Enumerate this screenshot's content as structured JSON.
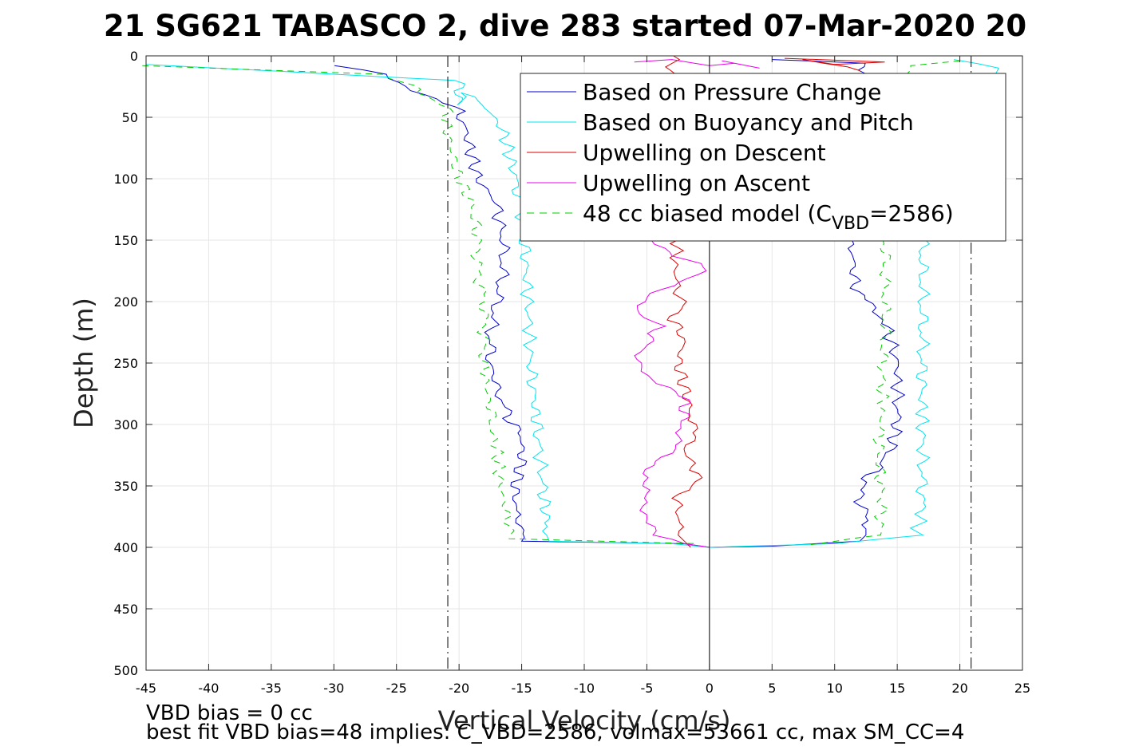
{
  "chart_data": {
    "type": "line",
    "title": "21 SG621 TABASCO 2, dive 283 started 07-Mar-2020 20",
    "xlabel": "Vertical Velocity (cm/s)",
    "ylabel": "Depth (m)",
    "xlim": [
      -45,
      25
    ],
    "ylim": [
      0,
      500
    ],
    "y_reversed": true,
    "grid": true,
    "x_ticks": [
      -45,
      -40,
      -35,
      -30,
      -25,
      -20,
      -15,
      -10,
      -5,
      0,
      5,
      10,
      15,
      20,
      25
    ],
    "y_ticks": [
      0,
      50,
      100,
      150,
      200,
      250,
      300,
      350,
      400,
      450,
      500
    ],
    "x_tick_labels": [
      "-45",
      "-40",
      "-35",
      "-30",
      "-25",
      "-20",
      "-15",
      "-10",
      "-5",
      "0",
      "5",
      "10",
      "15",
      "20",
      "25"
    ],
    "y_tick_labels": [
      "0",
      "50",
      "100",
      "150",
      "200",
      "250",
      "300",
      "350",
      "400",
      "450",
      "500"
    ],
    "vertical_reference_lines": [
      {
        "x": -20.9,
        "style": "dash-dot",
        "color": "#000000"
      },
      {
        "x": 20.9,
        "style": "dash-dot",
        "color": "#000000"
      },
      {
        "x": 0,
        "style": "solid",
        "color": "#000000"
      }
    ],
    "legend": {
      "placement": "top-right",
      "entries": [
        {
          "label": "Based on Pressure Change",
          "color": "#0000cc",
          "style": "solid"
        },
        {
          "label": "Based on Buoyancy and Pitch",
          "color": "#00e5ee",
          "style": "solid"
        },
        {
          "label": "Upwelling on Descent",
          "color": "#dd0000",
          "style": "solid"
        },
        {
          "label": "Upwelling on Ascent",
          "color": "#ee00ee",
          "style": "solid"
        },
        {
          "label_main": "48 cc biased model (C",
          "label_sub": "VBD",
          "label_end": "=2586)",
          "color": "#00cc00",
          "style": "dashed"
        }
      ]
    },
    "series": [
      {
        "name": "Based on Pressure Change",
        "color": "#0000cc",
        "dash": "",
        "x": [
          -30,
          -26,
          -24,
          -22,
          -20,
          -19.5,
          -19,
          -18.5,
          -17,
          -16.5,
          -16.5,
          -17,
          -17.5,
          -17.5,
          -17,
          -16.5,
          -16,
          -15,
          -15,
          -15.5,
          -15.5,
          -15,
          -15,
          -2,
          0
        ],
        "y": [
          8,
          15,
          25,
          35,
          45,
          60,
          80,
          100,
          120,
          150,
          175,
          200,
          225,
          250,
          270,
          280,
          295,
          310,
          330,
          350,
          370,
          380,
          395,
          397,
          400
        ]
      },
      {
        "name": "Based on Pressure Change",
        "color": "#0000cc",
        "dash": "",
        "x": [
          5,
          12,
          13,
          12.5,
          12,
          11.5,
          11,
          11,
          11.5,
          11.5,
          12,
          13,
          14,
          15,
          15,
          15,
          14.5,
          13.5,
          12,
          12,
          12.5,
          12.5,
          12.5,
          12,
          5,
          0
        ],
        "y": [
          3,
          6,
          20,
          50,
          80,
          100,
          120,
          150,
          160,
          180,
          195,
          205,
          215,
          250,
          270,
          300,
          320,
          335,
          350,
          360,
          375,
          385,
          390,
          395,
          399,
          400
        ]
      },
      {
        "name": "Based on Buoyancy and Pitch",
        "color": "#00e5ee",
        "dash": "",
        "x": [
          -45,
          -20,
          -20,
          -20,
          -18,
          -16.5,
          -16,
          -15.5,
          -15,
          -14.8,
          -14.5,
          -14.3,
          -14,
          -13.8,
          -13.5,
          -13.2,
          -13,
          -13,
          -12.8,
          -3,
          0
        ],
        "y": [
          7,
          20,
          40,
          30,
          40,
          60,
          80,
          100,
          125,
          150,
          200,
          250,
          280,
          300,
          330,
          360,
          380,
          390,
          395,
          397,
          400
        ]
      },
      {
        "name": "Based on Buoyancy and Pitch",
        "color": "#00e5ee",
        "dash": "",
        "x": [
          20,
          23,
          22,
          21,
          17,
          17,
          17,
          17,
          17,
          17,
          17,
          17,
          17,
          17,
          16.5,
          10,
          3,
          0
        ],
        "y": [
          3,
          10,
          30,
          60,
          100,
          150,
          175,
          200,
          225,
          250,
          280,
          300,
          330,
          370,
          390,
          397,
          399,
          400
        ]
      },
      {
        "name": "Upwelling on Descent",
        "color": "#dd0000",
        "dash": "",
        "x": [
          -3,
          -2.5,
          -2.8,
          -2.5,
          -2,
          -3,
          -2,
          -2.5,
          -2,
          -1.5,
          -1,
          -1.5,
          -2,
          -1,
          -1.5,
          -2.5,
          -2.5,
          -2.5,
          -2,
          -1.5
        ],
        "y": [
          0,
          150,
          170,
          190,
          200,
          215,
          230,
          250,
          270,
          290,
          300,
          310,
          320,
          340,
          350,
          360,
          380,
          390,
          395,
          400
        ]
      },
      {
        "name": "Upwelling on Descent",
        "color": "#dd0000",
        "dash": "",
        "x": [
          6,
          14,
          10,
          8,
          12
        ],
        "y": [
          2,
          5,
          7,
          3,
          12
        ]
      },
      {
        "name": "Upwelling on Ascent",
        "color": "#ee00ee",
        "dash": "",
        "x": [
          -5,
          -3,
          0,
          -4,
          -5,
          -6,
          -4,
          -5,
          -6,
          -5,
          -3,
          -2,
          -2,
          -2.5,
          -3,
          -4,
          -5,
          -5.5,
          -5,
          -5,
          -5,
          -4.5,
          -2,
          0
        ],
        "y": [
          150,
          160,
          175,
          190,
          200,
          210,
          220,
          235,
          250,
          260,
          270,
          280,
          300,
          310,
          320,
          330,
          340,
          350,
          360,
          370,
          380,
          390,
          397,
          400
        ]
      },
      {
        "name": "Upwelling on Ascent",
        "color": "#ee00ee",
        "dash": "",
        "x": [
          -6,
          -3,
          0,
          2,
          4,
          1
        ],
        "y": [
          5,
          3,
          8,
          6,
          10,
          4
        ]
      },
      {
        "name": "48 cc biased model",
        "color": "#00cc00",
        "dash": "8,6",
        "x": [
          -45,
          -26,
          -24,
          -23,
          -21,
          -21,
          -20.5,
          -20,
          -19,
          -18.5,
          -18.5,
          -18,
          -18,
          -18,
          -17.8,
          -17.5,
          -17.5,
          -17,
          -16.8,
          -16.5,
          -16,
          -16,
          -1
        ],
        "y": [
          8,
          15,
          22,
          30,
          40,
          60,
          80,
          100,
          120,
          150,
          175,
          200,
          225,
          250,
          270,
          290,
          300,
          320,
          340,
          360,
          380,
          393,
          397
        ]
      },
      {
        "name": "48 cc biased model",
        "color": "#00cc00",
        "dash": "8,6",
        "x": [
          20,
          16,
          15,
          14,
          14,
          14,
          14,
          14,
          14,
          13.8,
          13.8,
          13.7,
          13.5,
          13.8,
          13.6,
          8
        ],
        "y": [
          4,
          8,
          30,
          60,
          100,
          150,
          175,
          200,
          225,
          250,
          280,
          300,
          330,
          360,
          390,
          398
        ]
      }
    ],
    "annotations": [
      "VBD bias = 0 cc",
      "best fit VBD bias=48 implies: C_VBD=2586, volmax=53661 cc, max SM_CC=4"
    ]
  }
}
